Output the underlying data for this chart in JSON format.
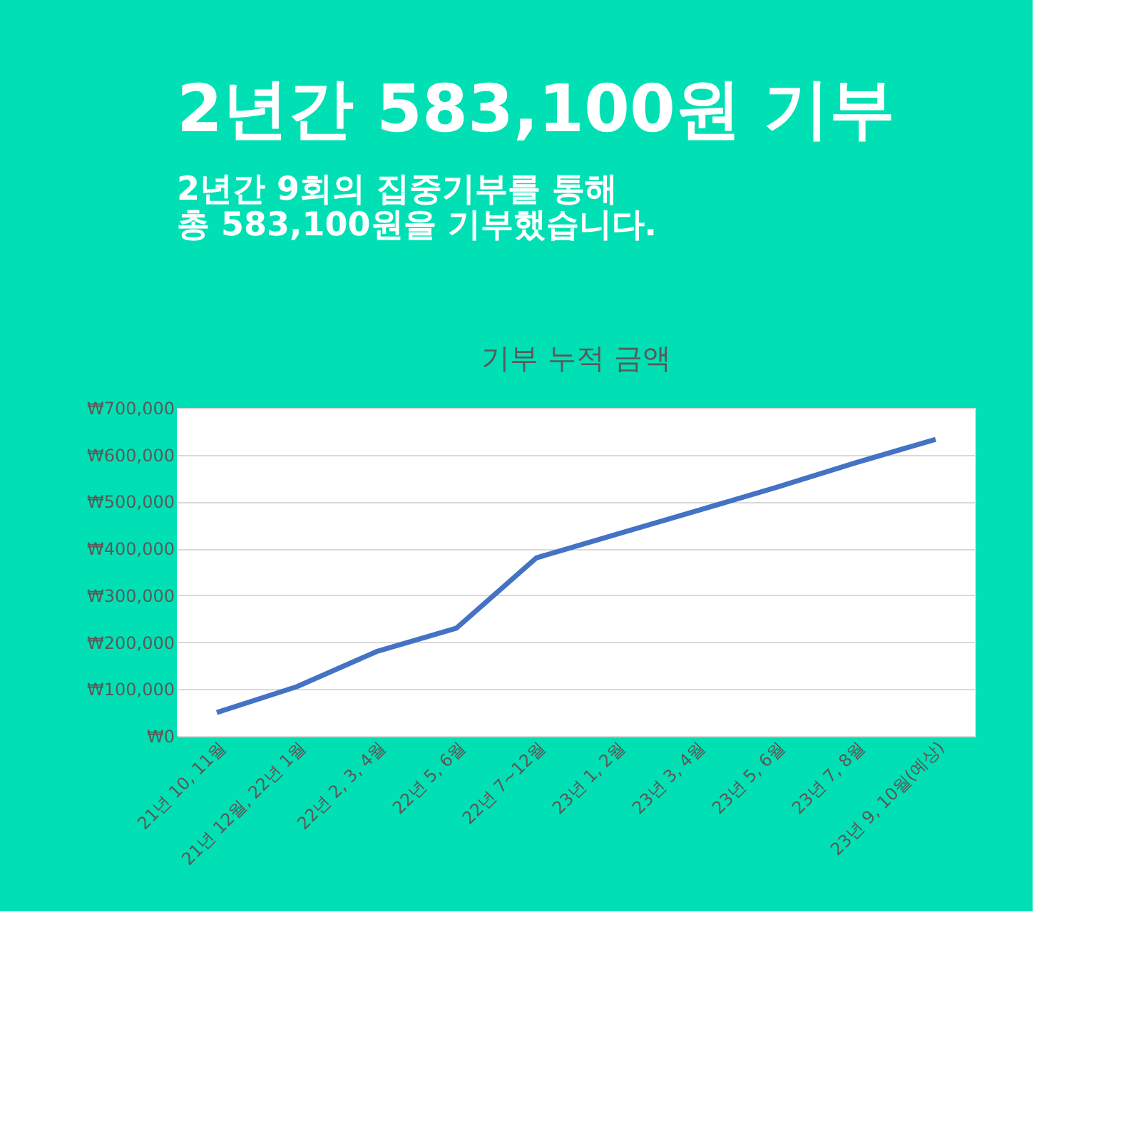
{
  "chart_data": {
    "type": "line",
    "title": "기부 누적 금액",
    "annotations": [
      "2년간 583,100원 기부",
      "2년간 9회의 집중기부를 통해",
      "총 583,100원을 기부했습니다."
    ],
    "categories": [
      "21년 10, 11월",
      "21년 12월, 22년 1월",
      "22년 2, 3, 4월",
      "22년 5, 6월",
      "22년 7~12월",
      "23년 1, 2월",
      "23년 3, 4월",
      "23년 5, 6월",
      "23년 7, 8월",
      "23년 9, 10월(예상)"
    ],
    "series": [
      {
        "color": "#4472c4",
        "values": [
          50000,
          105000,
          180000,
          230000,
          380000,
          430000,
          480000,
          530000,
          583000,
          633000
        ]
      }
    ],
    "ylim": [
      0,
      700000
    ],
    "yticks": [
      {
        "value": 0,
        "label": "₩0"
      },
      {
        "value": 100000,
        "label": "₩100,000"
      },
      {
        "value": 200000,
        "label": "₩200,000"
      },
      {
        "value": 300000,
        "label": "₩300,000"
      },
      {
        "value": 400000,
        "label": "₩400,000"
      },
      {
        "value": 500000,
        "label": "₩500,000"
      },
      {
        "value": 600000,
        "label": "₩600,000"
      },
      {
        "value": 700000,
        "label": "₩700,000"
      }
    ],
    "grid": "y",
    "marker": "none",
    "line_style": "solid"
  }
}
